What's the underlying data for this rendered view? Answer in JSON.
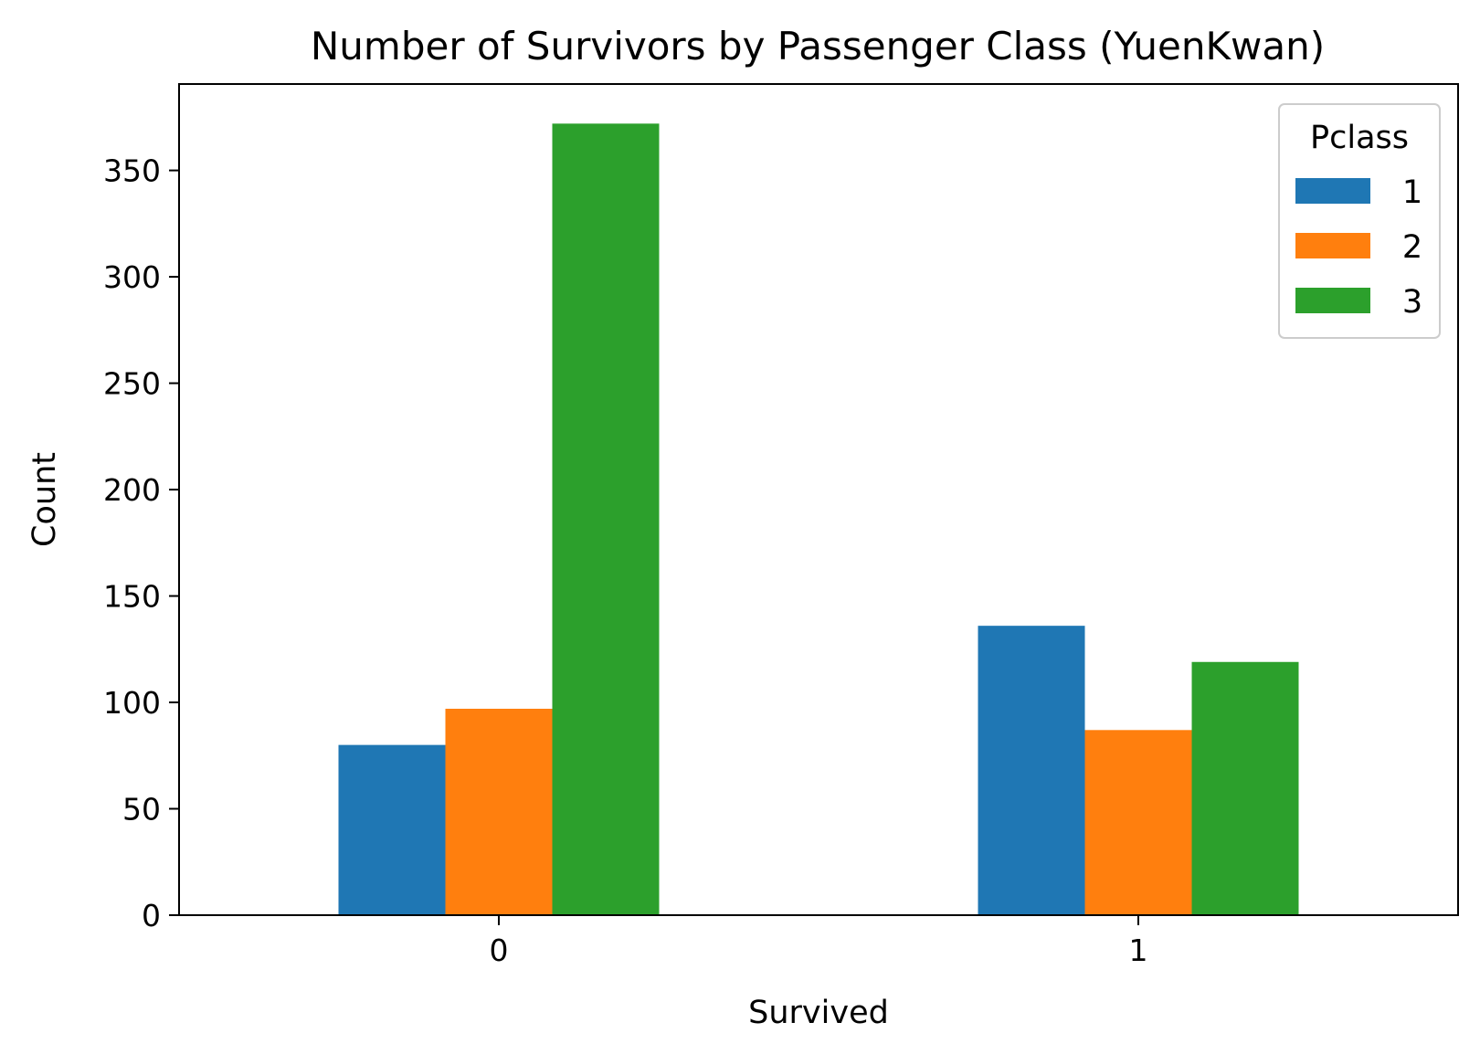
{
  "chart_data": {
    "type": "bar",
    "title": "Number of Survivors by Passenger Class (YuenKwan)",
    "xlabel": "Survived",
    "ylabel": "Count",
    "categories": [
      "0",
      "1"
    ],
    "series": [
      {
        "name": "1",
        "values": [
          80,
          136
        ],
        "color": "#1f77b4"
      },
      {
        "name": "2",
        "values": [
          97,
          87
        ],
        "color": "#ff7f0e"
      },
      {
        "name": "3",
        "values": [
          372,
          119
        ],
        "color": "#2ca02c"
      }
    ],
    "ylim": [
      0,
      390.6
    ],
    "yticks": [
      0,
      50,
      100,
      150,
      200,
      250,
      300,
      350
    ],
    "legend": {
      "title": "Pclass",
      "placement": "top-right"
    },
    "grid": false
  }
}
